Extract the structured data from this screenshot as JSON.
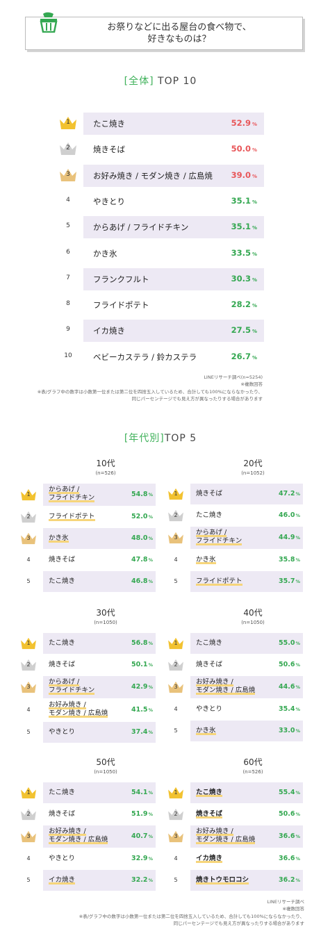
{
  "question": {
    "line1": "お祭りなどに出る屋台の食べ物で、",
    "line2": "好きなものは？"
  },
  "overall": {
    "title_open": "[全体]",
    "title_rest": " TOP 10",
    "source": "LINEリサーチ調べ(n=5254)",
    "multi": "※複数回答",
    "note1": "※表/グラフ中の数字は小数第一位または第二位を四捨五入しているため、合計しても100%にならなかったり、",
    "note2": "同じパーセンテージでも見え方が異なったりする場合があります"
  },
  "by_age": {
    "title_open": "[年代別]",
    "title_rest": "TOP 5",
    "source": "LINEリサーチ調べ",
    "multi": "※複数回答",
    "note1": "※表/グラフ中の数字は小数第一位または第二位を四捨五入しているため、合計しても100%にならなかったり、",
    "note2": "同じパーセンテージでも見え方が異なったりする場合があります"
  },
  "colors": {
    "gold": "#f2c230",
    "silver": "#cfcfcf",
    "bronze": "#e9c27b",
    "red": "#e8575a",
    "green": "#35a852",
    "shade": "#ede9f4",
    "underline": "#f6d57a"
  },
  "chart_data": [
    {
      "type": "table",
      "unit": "%",
      "categories": [
        "たこ焼き",
        "焼きそば",
        "お好み焼き / モダン焼き / 広島焼",
        "やきとり",
        "からあげ / フライドチキン",
        "かき氷",
        "フランクフルト",
        "フライドポテト",
        "イカ焼き",
        "ベビーカステラ / 鈴カステラ"
      ],
      "ranks": [
        1,
        2,
        3,
        4,
        5,
        6,
        7,
        8,
        9,
        10
      ],
      "values": [
        52.9,
        50.0,
        39.0,
        35.1,
        35.1,
        33.5,
        30.3,
        28.2,
        27.5,
        26.7
      ]
    },
    {
      "type": "table",
      "unit": "%",
      "age": "10代",
      "n": "(n=526)",
      "ranks": [
        1,
        2,
        3,
        4,
        5
      ],
      "categories": [
        "からあげ / フライドチキン",
        "フライドポテト",
        "かき氷",
        "焼きそば",
        "たこ焼き"
      ],
      "values": [
        54.8,
        52.0,
        48.0,
        47.8,
        46.8
      ]
    },
    {
      "type": "table",
      "unit": "%",
      "age": "20代",
      "n": "(n=1052)",
      "ranks": [
        1,
        2,
        3,
        4,
        5
      ],
      "categories": [
        "焼きそば",
        "たこ焼き",
        "からあげ / フライドチキン",
        "かき氷",
        "フライドポテト"
      ],
      "values": [
        47.2,
        46.0,
        44.9,
        35.8,
        35.7
      ]
    },
    {
      "type": "table",
      "unit": "%",
      "age": "30代",
      "n": "(n=1050)",
      "ranks": [
        1,
        2,
        3,
        4,
        5
      ],
      "categories": [
        "たこ焼き",
        "焼きそば",
        "からあげ / フライドチキン",
        "お好み焼き / モダン焼き / 広島焼",
        "やきとり"
      ],
      "values": [
        56.8,
        50.1,
        42.9,
        41.5,
        37.4
      ]
    },
    {
      "type": "table",
      "unit": "%",
      "age": "40代",
      "n": "(n=1050)",
      "ranks": [
        1,
        2,
        3,
        4,
        5
      ],
      "categories": [
        "たこ焼き",
        "焼きそば",
        "お好み焼き / モダン焼き / 広島焼",
        "やきとり",
        "かき氷"
      ],
      "values": [
        55.0,
        50.6,
        44.6,
        35.4,
        33.0
      ]
    },
    {
      "type": "table",
      "unit": "%",
      "age": "50代",
      "n": "(n=1050)",
      "ranks": [
        1,
        2,
        3,
        4,
        5
      ],
      "categories": [
        "たこ焼き",
        "焼きそば",
        "お好み焼き / モダン焼き / 広島焼",
        "やきとり",
        "イカ焼き"
      ],
      "values": [
        54.1,
        51.9,
        40.7,
        32.9,
        32.2
      ]
    },
    {
      "type": "table",
      "unit": "%",
      "age": "60代",
      "n": "(n=526)",
      "ranks": [
        1,
        2,
        3,
        4,
        5
      ],
      "categories": [
        "たこ焼き",
        "焼きそば",
        "お好み焼き / モダン焼き / 広島焼",
        "イカ焼き",
        "焼きトウモロコシ"
      ],
      "values": [
        55.4,
        50.6,
        36.6,
        36.6,
        36.2
      ]
    }
  ]
}
